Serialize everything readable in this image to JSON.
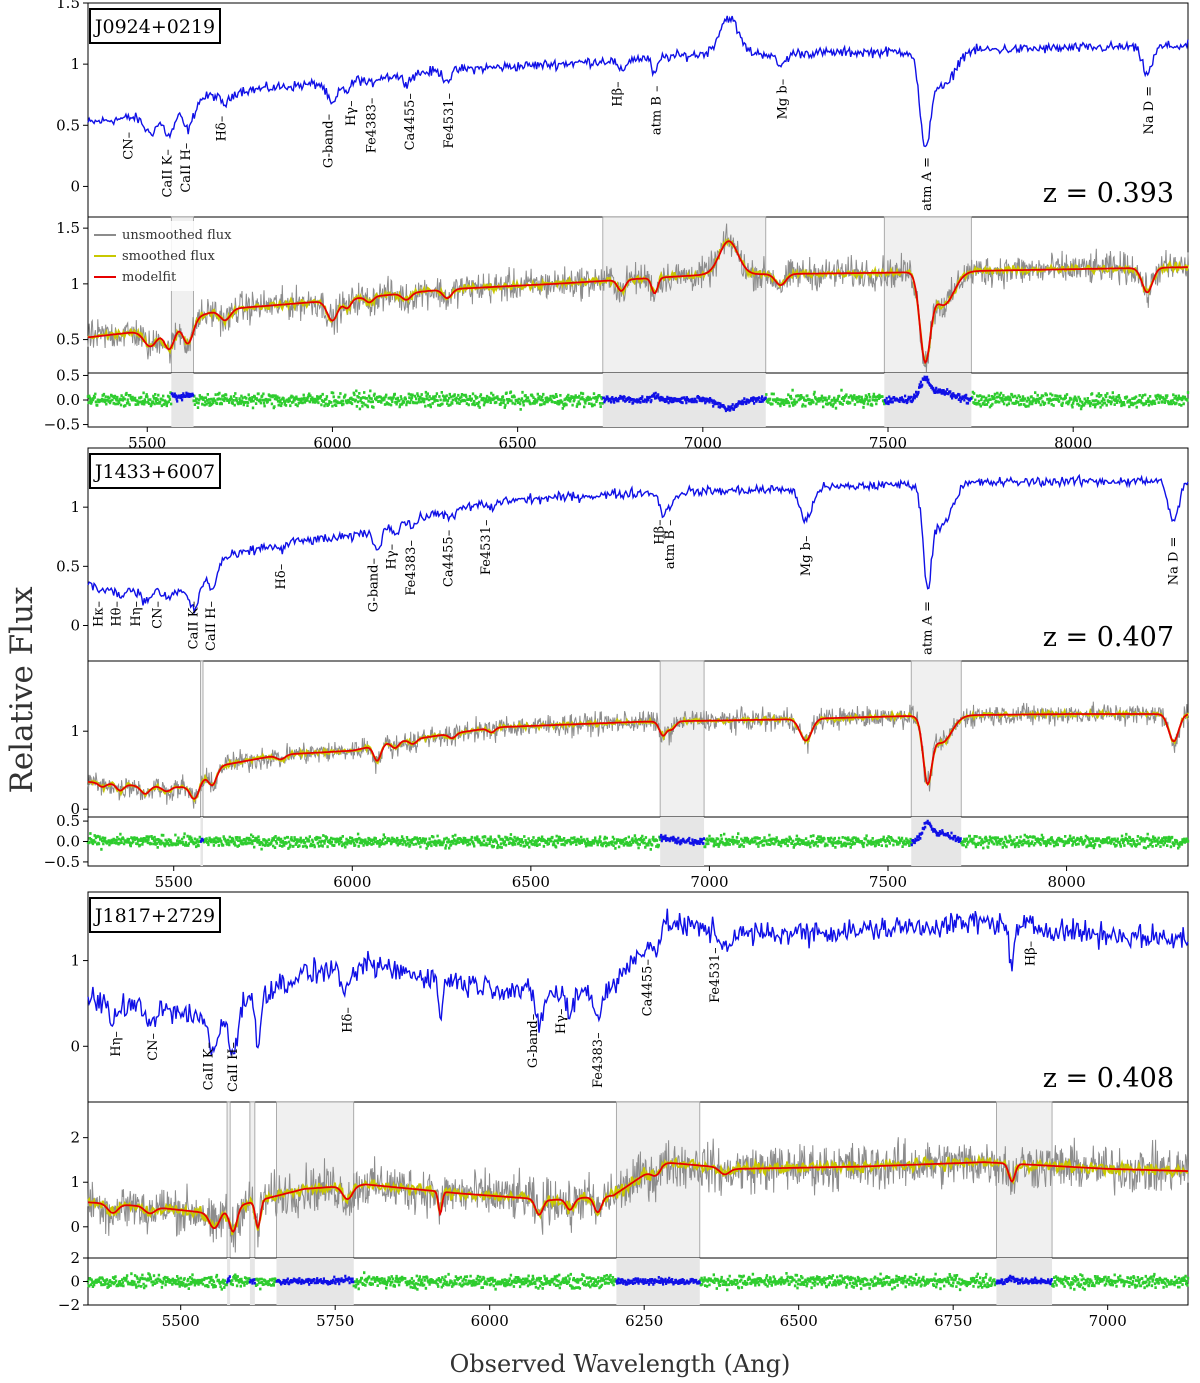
{
  "figure": {
    "y_label": "Relative Flux",
    "x_label": "Observed Wavelength (Ang)"
  },
  "legend": [
    {
      "label": "unsmoothed flux",
      "color": "#8c8c8c"
    },
    {
      "label": "smoothed flux",
      "color": "#c8c800"
    },
    {
      "label": "modelfit",
      "color": "#e60000"
    }
  ],
  "colors": {
    "spectrum": "#1010e6",
    "residual": "#2ecc2e",
    "masked_residual": "#1010e6",
    "mask_region": "#f0f0f0"
  },
  "chart_data": [
    {
      "type": "line",
      "object": "J0924+0219",
      "redshift_label": "z = 0.393",
      "xlim": [
        5340,
        8310
      ],
      "x_ticks": [
        5500,
        6000,
        6500,
        7000,
        7500,
        8000
      ],
      "spectrum_ylim": [
        -0.25,
        1.5
      ],
      "spectrum_yticks": [
        0.0,
        0.5,
        1.0,
        1.5
      ],
      "fit_ylim": [
        0.2,
        1.6
      ],
      "fit_yticks": [
        0.5,
        1.0,
        1.5
      ],
      "resid_ylim": [
        -0.55,
        0.55
      ],
      "resid_yticks": [
        -0.5,
        0.0,
        0.5
      ],
      "continuum": [
        [
          5340,
          0.52
        ],
        [
          5500,
          0.58
        ],
        [
          5700,
          0.77
        ],
        [
          6000,
          0.85
        ],
        [
          6300,
          0.95
        ],
        [
          6600,
          1.0
        ],
        [
          7000,
          1.08
        ],
        [
          7500,
          1.1
        ],
        [
          7800,
          1.12
        ],
        [
          8310,
          1.15
        ]
      ],
      "features": [
        {
          "x": 5510,
          "depth": 0.15,
          "width": 18
        },
        {
          "x": 5560,
          "depth": 0.22,
          "width": 14
        },
        {
          "x": 5610,
          "depth": 0.22,
          "width": 14
        },
        {
          "x": 5710,
          "depth": 0.1,
          "width": 14
        },
        {
          "x": 6000,
          "depth": 0.18,
          "width": 14
        },
        {
          "x": 6040,
          "depth": 0.08,
          "width": 10
        },
        {
          "x": 6100,
          "depth": 0.05,
          "width": 10
        },
        {
          "x": 6200,
          "depth": 0.06,
          "width": 12
        },
        {
          "x": 6310,
          "depth": 0.08,
          "width": 12
        },
        {
          "x": 6780,
          "depth": 0.1,
          "width": 10
        },
        {
          "x": 6870,
          "depth": 0.14,
          "width": 8
        },
        {
          "x": 7070,
          "depth": -0.3,
          "width": 25
        },
        {
          "x": 7210,
          "depth": 0.1,
          "width": 14
        },
        {
          "x": 7600,
          "depth": 0.75,
          "width": 14
        },
        {
          "x": 7650,
          "depth": 0.3,
          "width": 28
        },
        {
          "x": 8200,
          "depth": 0.22,
          "width": 14
        }
      ],
      "line_labels": [
        {
          "text": "CN–",
          "x": 5450
        },
        {
          "text": "CaII K–",
          "x": 5555
        },
        {
          "text": "CaII H–",
          "x": 5605
        },
        {
          "text": "Hδ–",
          "x": 5700
        },
        {
          "text": "G-band–",
          "x": 5990
        },
        {
          "text": "Hγ–",
          "x": 6050
        },
        {
          "text": "Fe4383–",
          "x": 6105
        },
        {
          "text": "Ca4455–",
          "x": 6210
        },
        {
          "text": "Fe4531–",
          "x": 6315
        },
        {
          "text": "Hβ–",
          "x": 6770
        },
        {
          "text": "atm B –",
          "x": 6875
        },
        {
          "text": "Mg b–",
          "x": 7215
        },
        {
          "text": "atm A =",
          "x": 7605
        },
        {
          "text": "Na D =",
          "x": 8205
        }
      ],
      "mask_regions": [
        [
          5565,
          5625
        ],
        [
          6730,
          7170
        ],
        [
          7490,
          7725
        ]
      ]
    },
    {
      "type": "line",
      "object": "J1433+6007",
      "redshift_label": "z = 0.407",
      "xlim": [
        5260,
        8340
      ],
      "x_ticks": [
        5500,
        6000,
        6500,
        7000,
        7500,
        8000
      ],
      "spectrum_ylim": [
        -0.3,
        1.5
      ],
      "spectrum_yticks": [
        0.0,
        0.5,
        1.0
      ],
      "fit_ylim": [
        -0.1,
        1.9
      ],
      "fit_yticks": [
        0,
        1
      ],
      "resid_ylim": [
        -0.6,
        0.6
      ],
      "resid_yticks": [
        -0.5,
        0.0,
        0.5
      ],
      "continuum": [
        [
          5260,
          0.35
        ],
        [
          5400,
          0.3
        ],
        [
          5550,
          0.28
        ],
        [
          5620,
          0.55
        ],
        [
          5800,
          0.7
        ],
        [
          6000,
          0.75
        ],
        [
          6100,
          0.85
        ],
        [
          6400,
          1.05
        ],
        [
          6800,
          1.12
        ],
        [
          7200,
          1.15
        ],
        [
          7600,
          1.2
        ],
        [
          8000,
          1.22
        ],
        [
          8340,
          1.22
        ]
      ],
      "features": [
        {
          "x": 5300,
          "depth": 0.05,
          "width": 10
        },
        {
          "x": 5350,
          "depth": 0.08,
          "width": 10
        },
        {
          "x": 5420,
          "depth": 0.1,
          "width": 12
        },
        {
          "x": 5480,
          "depth": 0.06,
          "width": 12
        },
        {
          "x": 5560,
          "depth": 0.18,
          "width": 12
        },
        {
          "x": 5610,
          "depth": 0.2,
          "width": 12
        },
        {
          "x": 5800,
          "depth": 0.06,
          "width": 12
        },
        {
          "x": 6070,
          "depth": 0.2,
          "width": 10
        },
        {
          "x": 6120,
          "depth": 0.08,
          "width": 10
        },
        {
          "x": 6170,
          "depth": 0.06,
          "width": 10
        },
        {
          "x": 6280,
          "depth": 0.06,
          "width": 10
        },
        {
          "x": 6390,
          "depth": 0.06,
          "width": 10
        },
        {
          "x": 6870,
          "depth": 0.18,
          "width": 10
        },
        {
          "x": 6895,
          "depth": 0.1,
          "width": 10
        },
        {
          "x": 7270,
          "depth": 0.28,
          "width": 16
        },
        {
          "x": 7610,
          "depth": 0.75,
          "width": 12
        },
        {
          "x": 7650,
          "depth": 0.35,
          "width": 28
        },
        {
          "x": 8300,
          "depth": 0.35,
          "width": 14
        }
      ],
      "line_labels": [
        {
          "text": "Hκ–",
          "x": 5290
        },
        {
          "text": "Hθ–",
          "x": 5340
        },
        {
          "text": "Hη–",
          "x": 5395
        },
        {
          "text": "CN–",
          "x": 5455
        },
        {
          "text": "CaII K–",
          "x": 5555
        },
        {
          "text": "CaII H–",
          "x": 5605
        },
        {
          "text": "Hδ–",
          "x": 5800
        },
        {
          "text": "G-band–",
          "x": 6060
        },
        {
          "text": "Hγ–",
          "x": 6110
        },
        {
          "text": "Fe4383–",
          "x": 6165
        },
        {
          "text": "Ca4455–",
          "x": 6270
        },
        {
          "text": "Fe4531–",
          "x": 6375
        },
        {
          "text": "Hβ–",
          "x": 6860
        },
        {
          "text": "atm B –",
          "x": 6890
        },
        {
          "text": "Mg b–",
          "x": 7270
        },
        {
          "text": "atm A =",
          "x": 7610
        },
        {
          "text": "Na D =",
          "x": 8300
        }
      ],
      "mask_regions": [
        [
          5575,
          5582
        ],
        [
          6862,
          6985
        ],
        [
          7565,
          7705
        ]
      ]
    },
    {
      "type": "line",
      "object": "J1817+2729",
      "redshift_label": "z = 0.408",
      "xlim": [
        5350,
        7130
      ],
      "x_ticks": [
        5500,
        5750,
        6000,
        6250,
        6500,
        6750,
        7000
      ],
      "spectrum_ylim": [
        -0.65,
        1.8
      ],
      "spectrum_yticks": [
        0,
        1
      ],
      "fit_ylim": [
        -0.7,
        2.8
      ],
      "fit_yticks": [
        0,
        1,
        2
      ],
      "resid_ylim": [
        -2.0,
        2.0
      ],
      "resid_yticks": [
        -2,
        0,
        2
      ],
      "continuum": [
        [
          5350,
          0.55
        ],
        [
          5450,
          0.45
        ],
        [
          5550,
          0.3
        ],
        [
          5600,
          0.5
        ],
        [
          5700,
          0.85
        ],
        [
          5800,
          0.95
        ],
        [
          5950,
          0.75
        ],
        [
          6100,
          0.6
        ],
        [
          6200,
          0.7
        ],
        [
          6280,
          1.45
        ],
        [
          6400,
          1.3
        ],
        [
          6600,
          1.35
        ],
        [
          6800,
          1.45
        ],
        [
          7000,
          1.3
        ],
        [
          7130,
          1.25
        ]
      ],
      "features": [
        {
          "x": 5390,
          "depth": 0.2,
          "width": 8
        },
        {
          "x": 5450,
          "depth": 0.15,
          "width": 8
        },
        {
          "x": 5555,
          "depth": 0.35,
          "width": 8
        },
        {
          "x": 5585,
          "depth": 0.55,
          "width": 6
        },
        {
          "x": 5625,
          "depth": 0.6,
          "width": 4
        },
        {
          "x": 5770,
          "depth": 0.3,
          "width": 8
        },
        {
          "x": 5920,
          "depth": 0.5,
          "width": 3
        },
        {
          "x": 6080,
          "depth": 0.35,
          "width": 6
        },
        {
          "x": 6130,
          "depth": 0.25,
          "width": 6
        },
        {
          "x": 6175,
          "depth": 0.35,
          "width": 6
        },
        {
          "x": 6270,
          "depth": 0.2,
          "width": 8
        },
        {
          "x": 6380,
          "depth": 0.15,
          "width": 8
        },
        {
          "x": 6845,
          "depth": 0.4,
          "width": 5
        }
      ],
      "line_labels": [
        {
          "text": "Hη–",
          "x": 5395
        },
        {
          "text": "CN–",
          "x": 5455
        },
        {
          "text": "CaII K–",
          "x": 5545
        },
        {
          "text": "CaII H–",
          "x": 5585
        },
        {
          "text": "Hδ–",
          "x": 5770
        },
        {
          "text": "G-band–",
          "x": 6070
        },
        {
          "text": "Hγ–",
          "x": 6115
        },
        {
          "text": "Fe4383–",
          "x": 6175
        },
        {
          "text": "Ca4455–",
          "x": 6255
        },
        {
          "text": "Fe4531–",
          "x": 6365
        },
        {
          "text": "Hβ–",
          "x": 6875
        }
      ],
      "mask_regions": [
        [
          5575,
          5580
        ],
        [
          5612,
          5620
        ],
        [
          5655,
          5780
        ],
        [
          6205,
          6340
        ],
        [
          6820,
          6910
        ]
      ]
    }
  ]
}
